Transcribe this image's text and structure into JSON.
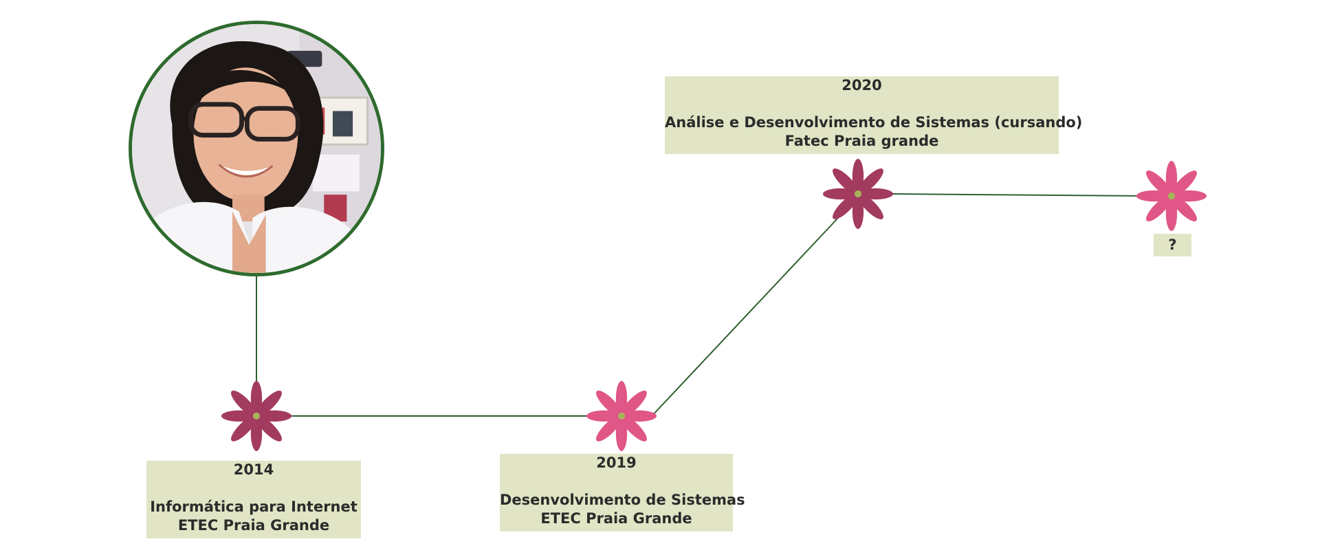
{
  "timeline": {
    "milestones": [
      {
        "year": "2014",
        "course": "Informática para Internet",
        "school": "ETEC Praia Grande",
        "flower_color": "#a33a5f"
      },
      {
        "year": "2019",
        "course": "Desenvolvimento de Sistemas",
        "school": "ETEC Praia Grande",
        "flower_color": "#e05687"
      },
      {
        "year": "2020",
        "course": "Análise e Desenvolvimento de Sistemas (cursando)",
        "school": "Fatec Praia grande",
        "flower_color": "#a33a5f"
      },
      {
        "label": "?",
        "flower_color": "#e05687"
      }
    ],
    "line_color": "#2e5f2e",
    "box_color": "#e1e5c5",
    "avatar_border_color": "#2e6b2e"
  }
}
